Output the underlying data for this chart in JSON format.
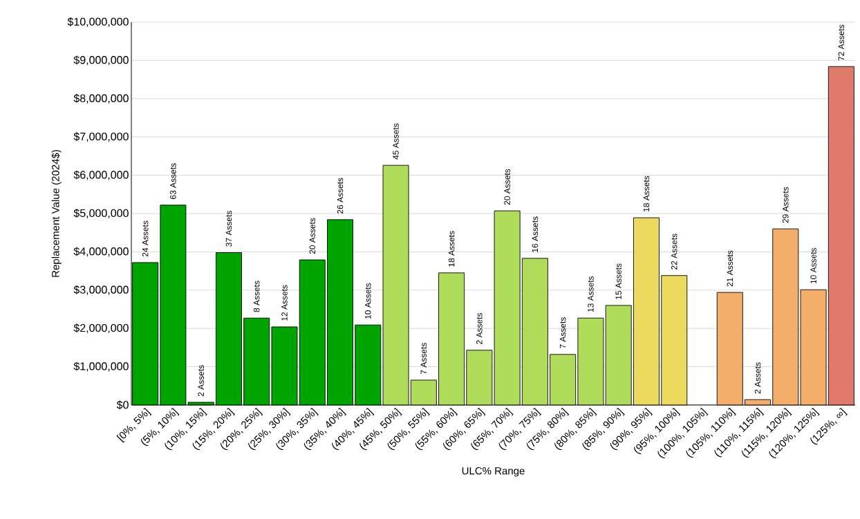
{
  "chart_data": {
    "type": "bar",
    "xlabel": "ULC% Range",
    "ylabel": "Replacement Value (2024$)",
    "categories": [
      "[0%, 5%]",
      "(5%, 10%]",
      "(10%, 15%]",
      "(15%, 20%]",
      "(20%, 25%]",
      "(25%, 30%]",
      "(30%, 35%]",
      "(35%, 40%]",
      "(40%, 45%]",
      "(45%, 50%]",
      "(50%, 55%]",
      "(55%, 60%]",
      "(60%, 65%]",
      "(65%, 70%]",
      "(70%, 75%]",
      "(75%, 80%]",
      "(80%, 85%]",
      "(85%, 90%]",
      "(90%, 95%]",
      "(95%, 100%]",
      "(100%, 105%]",
      "(105%, 110%]",
      "(110%, 115%]",
      "(115%, 120%]",
      "(120%, 125%]",
      "(125%, ∞]"
    ],
    "values": [
      3720000,
      5220000,
      70000,
      3980000,
      2270000,
      2040000,
      3790000,
      4840000,
      2090000,
      6260000,
      650000,
      3450000,
      1430000,
      5070000,
      3830000,
      1320000,
      2270000,
      2600000,
      4890000,
      3380000,
      null,
      2940000,
      140000,
      4600000,
      3010000,
      8840000
    ],
    "annotations": [
      {
        "text": "24 Assets",
        "x": "[0%, 5%]",
        "y": 3720000
      },
      {
        "text": "63 Assets",
        "x": "(5%, 10%]",
        "y": 5220000
      },
      {
        "text": "2 Assets",
        "x": "(10%, 15%]",
        "y": 70000
      },
      {
        "text": "37 Assets",
        "x": "(15%, 20%]",
        "y": 3980000
      },
      {
        "text": "8 Assets",
        "x": "(20%, 25%]",
        "y": 2270000
      },
      {
        "text": "12 Assets",
        "x": "(25%, 30%]",
        "y": 2040000
      },
      {
        "text": "20 Assets",
        "x": "(30%, 35%]",
        "y": 3790000
      },
      {
        "text": "26 Assets",
        "x": "(35%, 40%]",
        "y": 4840000
      },
      {
        "text": "10 Assets",
        "x": "(40%, 45%]",
        "y": 2090000
      },
      {
        "text": "45 Assets",
        "x": "(45%, 50%]",
        "y": 6260000
      },
      {
        "text": "7 Assets",
        "x": "(50%, 55%]",
        "y": 650000
      },
      {
        "text": "18 Assets",
        "x": "(55%, 60%]",
        "y": 3450000
      },
      {
        "text": "2 Assets",
        "x": "(60%, 65%]",
        "y": 1430000
      },
      {
        "text": "20 Assets",
        "x": "(65%, 70%]",
        "y": 5070000
      },
      {
        "text": "16 Assets",
        "x": "(70%, 75%]",
        "y": 3830000
      },
      {
        "text": "7 Assets",
        "x": "(75%, 80%]",
        "y": 1320000
      },
      {
        "text": "13 Assets",
        "x": "(80%, 85%]",
        "y": 2270000
      },
      {
        "text": "15 Assets",
        "x": "(85%, 90%]",
        "y": 2600000
      },
      {
        "text": "18 Assets",
        "x": "(90%, 95%]",
        "y": 4890000
      },
      {
        "text": "22 Assets",
        "x": "(95%, 100%]",
        "y": 3380000
      },
      {
        "text": "21 Assets",
        "x": "(105%, 110%]",
        "y": 2940000
      },
      {
        "text": "2 Assets",
        "x": "(110%, 115%]",
        "y": 140000
      },
      {
        "text": "29 Assets",
        "x": "(115%, 120%]",
        "y": 4600000
      },
      {
        "text": "10 Assets",
        "x": "(120%, 125%]",
        "y": 3010000
      },
      {
        "text": "72 Assets",
        "x": "(125%, ∞]",
        "y": 8840000
      }
    ],
    "colors": [
      "#00a400",
      "#00a400",
      "#00a400",
      "#00a400",
      "#00a400",
      "#00a400",
      "#00a400",
      "#00a400",
      "#00a400",
      "#b0dc5c",
      "#b0dc5c",
      "#b0dc5c",
      "#b0dc5c",
      "#b0dc5c",
      "#b0dc5c",
      "#b0dc5c",
      "#b0dc5c",
      "#b0dc5c",
      "#ecd960",
      "#ecd960",
      "#ecd960",
      "#f5ae6a",
      "#f5ae6a",
      "#f5ae6a",
      "#f5ae6a",
      "#e07b6c"
    ],
    "ylim": [
      0,
      10000000
    ],
    "yticks": [
      {
        "value": 0,
        "label": "$0"
      },
      {
        "value": 1000000,
        "label": "$1,000,000"
      },
      {
        "value": 2000000,
        "label": "$2,000,000"
      },
      {
        "value": 3000000,
        "label": "$3,000,000"
      },
      {
        "value": 4000000,
        "label": "$4,000,000"
      },
      {
        "value": 5000000,
        "label": "$5,000,000"
      },
      {
        "value": 6000000,
        "label": "$6,000,000"
      },
      {
        "value": 7000000,
        "label": "$7,000,000"
      },
      {
        "value": 8000000,
        "label": "$8,000,000"
      },
      {
        "value": 9000000,
        "label": "$9,000,000"
      },
      {
        "value": 10000000,
        "label": "$10,000,000"
      }
    ],
    "grid": "y"
  }
}
